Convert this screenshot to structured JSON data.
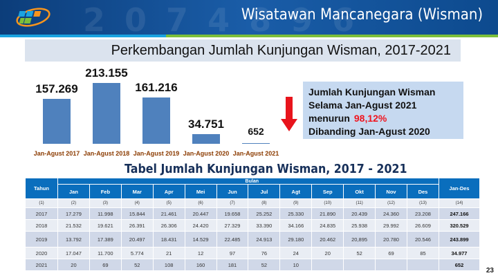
{
  "header": {
    "title": "Wisatawan Mancanegara (Wisman)",
    "page_number": "23"
  },
  "subtitle": "Perkembangan Jumlah Kunjungan Wisman, 2017-2021",
  "chart_data": {
    "type": "bar",
    "categories": [
      "Jan-Agust 2017",
      "Jan-Agust 2018",
      "Jan-Agust 2019",
      "Jan-Agust 2020",
      "Jan-Agust 2021"
    ],
    "values": [
      157.269,
      213.155,
      161.216,
      34.751,
      0.652
    ],
    "labels": [
      "157.269",
      "213.155",
      "161.216",
      "34.751",
      "652"
    ],
    "color": "#4f81bd",
    "ylim": [
      0,
      213.155
    ]
  },
  "info": {
    "line1": "Jumlah Kunjungan Wisman",
    "line2": "Selama Jan-Agust 2021",
    "line3": "menurun",
    "pct": "98,12%",
    "line4": "Dibanding Jan-Agust 2020",
    "arrow_color": "#e8141c"
  },
  "table": {
    "title": "Tabel Jumlah Kunjungan Wisman, 2017 - 2021",
    "year_header": "Tahun",
    "group_header": "Bulan",
    "total_header": "Jan-Des",
    "months": [
      "Jan",
      "Feb",
      "Mar",
      "Apr",
      "Mei",
      "Jun",
      "Jul",
      "Agt",
      "Sep",
      "Okt",
      "Nov",
      "Des"
    ],
    "col_numbers": [
      "(1)",
      "(2)",
      "(3)",
      "(4)",
      "(5)",
      "(6)",
      "(7)",
      "(8)",
      "(9)",
      "(10)",
      "(11)",
      "(12)",
      "(13)",
      "(14)"
    ],
    "rows": [
      [
        "2017",
        "17.279",
        "11.998",
        "15.844",
        "21.461",
        "20.447",
        "19.658",
        "25.252",
        "25.330",
        "21.890",
        "20.439",
        "24.360",
        "23.208",
        "247.166"
      ],
      [
        "2018",
        "21.532",
        "19.621",
        "26.391",
        "26.306",
        "24.420",
        "27.329",
        "33.390",
        "34.166",
        "24.835",
        "25.938",
        "29.992",
        "26.609",
        "320.529"
      ],
      [
        "2019",
        "13.792",
        "17.389",
        "20.497",
        "18.431",
        "14.529",
        "22.485",
        "24.913",
        "29.180",
        "20.462",
        "20,895",
        "20.780",
        "20.546",
        "243.899"
      ],
      [
        "2020",
        "17.047",
        "11.700",
        "5.774",
        "21",
        "12",
        "97",
        "76",
        "24",
        "20",
        "52",
        "69",
        "85",
        "34.977"
      ],
      [
        "2021",
        "20",
        "69",
        "52",
        "108",
        "160",
        "181",
        "52",
        "10",
        "",
        "",
        "",
        "",
        "652"
      ]
    ]
  }
}
